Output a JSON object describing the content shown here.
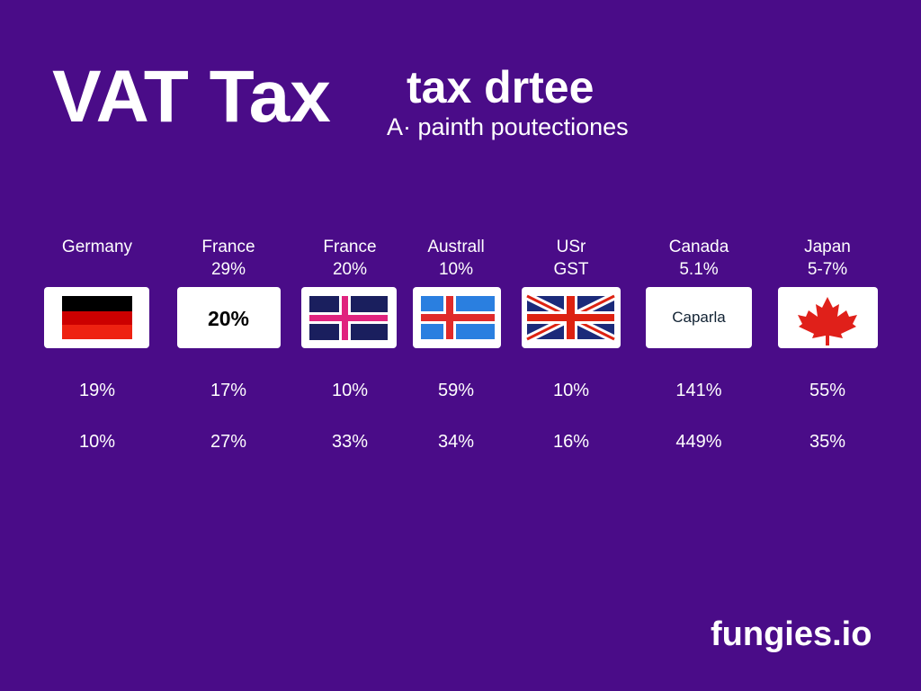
{
  "header": {
    "title": "VAT Tax",
    "title_side": "tax drtee",
    "subtitle": "A· painth poutectiones"
  },
  "columns": [
    {
      "name": "Germany",
      "values": [
        "19%",
        "10%"
      ]
    },
    {
      "name": "France",
      "rate": "29%",
      "card": "20%",
      "values": [
        "17%",
        "27%"
      ]
    },
    {
      "name": "France",
      "rate": "20%",
      "values": [
        "10%",
        "33%"
      ]
    },
    {
      "name": "Australl",
      "rate": "10%",
      "values": [
        "59%",
        "34%"
      ]
    },
    {
      "name": "USr",
      "rate": "GST",
      "values": [
        "10%",
        "16%"
      ]
    },
    {
      "name": "Canada",
      "rate": "5.1%",
      "card": "Caparla",
      "values": [
        "141%",
        "449%"
      ]
    },
    {
      "name": "Japan",
      "rate": "5-7%",
      "values": [
        "55%",
        "35%"
      ]
    }
  ],
  "brand": "fungies.io"
}
